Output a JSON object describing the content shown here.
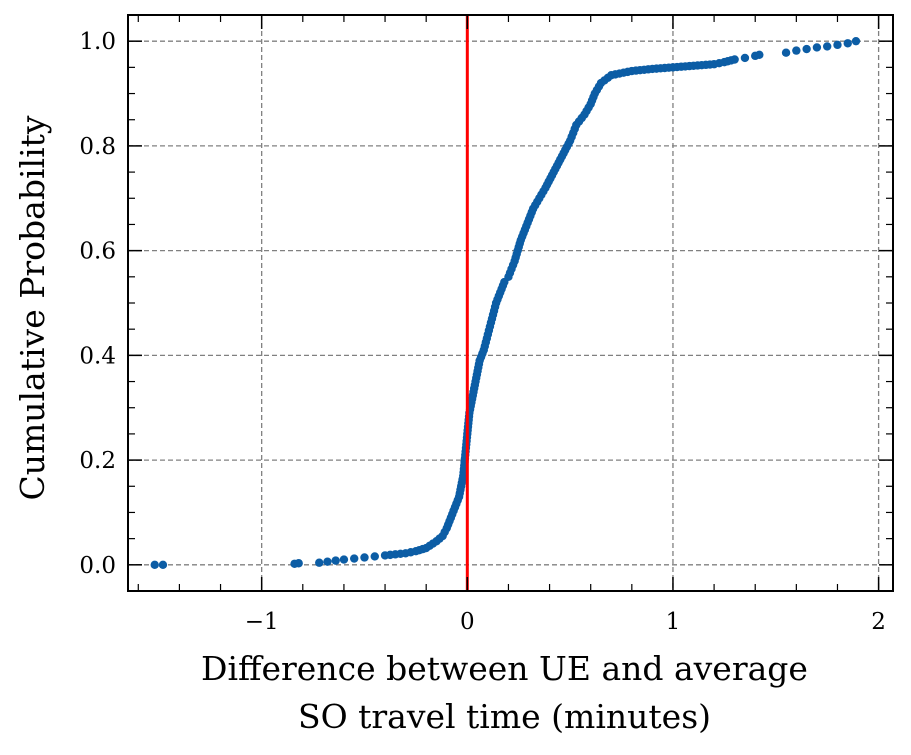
{
  "chart_data": {
    "type": "scatter",
    "title": "",
    "xlabel_lines": [
      "Difference between UE and average",
      "SO travel time (minutes)"
    ],
    "ylabel": "Cumulative Probability",
    "xlim": [
      -1.65,
      2.07
    ],
    "ylim": [
      -0.05,
      1.05
    ],
    "xticks": [
      -1,
      0,
      1,
      2
    ],
    "xtick_labels": [
      "−1",
      "0",
      "1",
      "2"
    ],
    "yticks": [
      0.0,
      0.2,
      0.4,
      0.6,
      0.8,
      1.0
    ],
    "ytick_labels": [
      "0.0",
      "0.2",
      "0.4",
      "0.6",
      "0.8",
      "1.0"
    ],
    "grid": true,
    "grid_style": "dashed",
    "reference_line": {
      "x": 0,
      "color": "#ff0000"
    },
    "series": [
      {
        "color": "#0c5da5",
        "kind": "empirical-cdf",
        "x": [
          -1.52,
          -1.48,
          -0.84,
          -0.82,
          -0.72,
          -0.68,
          -0.64,
          -0.6,
          -0.55,
          -0.5,
          -0.45,
          -0.4,
          -0.35,
          -0.3,
          -0.25,
          -0.2,
          -0.15,
          -0.12,
          -0.1,
          -0.08,
          -0.06,
          -0.04,
          -0.03,
          -0.02,
          -0.015,
          -0.01,
          -0.005,
          0.0,
          0.005,
          0.01,
          0.02,
          0.03,
          0.04,
          0.05,
          0.06,
          0.08,
          0.1,
          0.12,
          0.14,
          0.16,
          0.18,
          0.2,
          0.23,
          0.26,
          0.28,
          0.3,
          0.32,
          0.35,
          0.38,
          0.42,
          0.46,
          0.5,
          0.53,
          0.57,
          0.6,
          0.62,
          0.65,
          0.7,
          0.8,
          0.9,
          1.0,
          1.1,
          1.2,
          1.25,
          1.3,
          1.35,
          1.4,
          1.42,
          1.55,
          1.6,
          1.65,
          1.7,
          1.75,
          1.8,
          1.85,
          1.89
        ],
        "y": [
          0.0,
          0.0,
          0.002,
          0.003,
          0.004,
          0.006,
          0.008,
          0.01,
          0.012,
          0.014,
          0.016,
          0.018,
          0.02,
          0.022,
          0.026,
          0.032,
          0.045,
          0.055,
          0.07,
          0.09,
          0.11,
          0.13,
          0.15,
          0.17,
          0.19,
          0.21,
          0.23,
          0.25,
          0.27,
          0.29,
          0.31,
          0.33,
          0.35,
          0.37,
          0.39,
          0.41,
          0.44,
          0.47,
          0.5,
          0.52,
          0.54,
          0.55,
          0.58,
          0.62,
          0.64,
          0.66,
          0.68,
          0.7,
          0.72,
          0.75,
          0.78,
          0.81,
          0.84,
          0.86,
          0.88,
          0.9,
          0.92,
          0.935,
          0.943,
          0.947,
          0.95,
          0.953,
          0.956,
          0.96,
          0.965,
          0.968,
          0.972,
          0.974,
          0.978,
          0.982,
          0.985,
          0.988,
          0.99,
          0.993,
          0.996,
          1.0
        ]
      }
    ]
  }
}
